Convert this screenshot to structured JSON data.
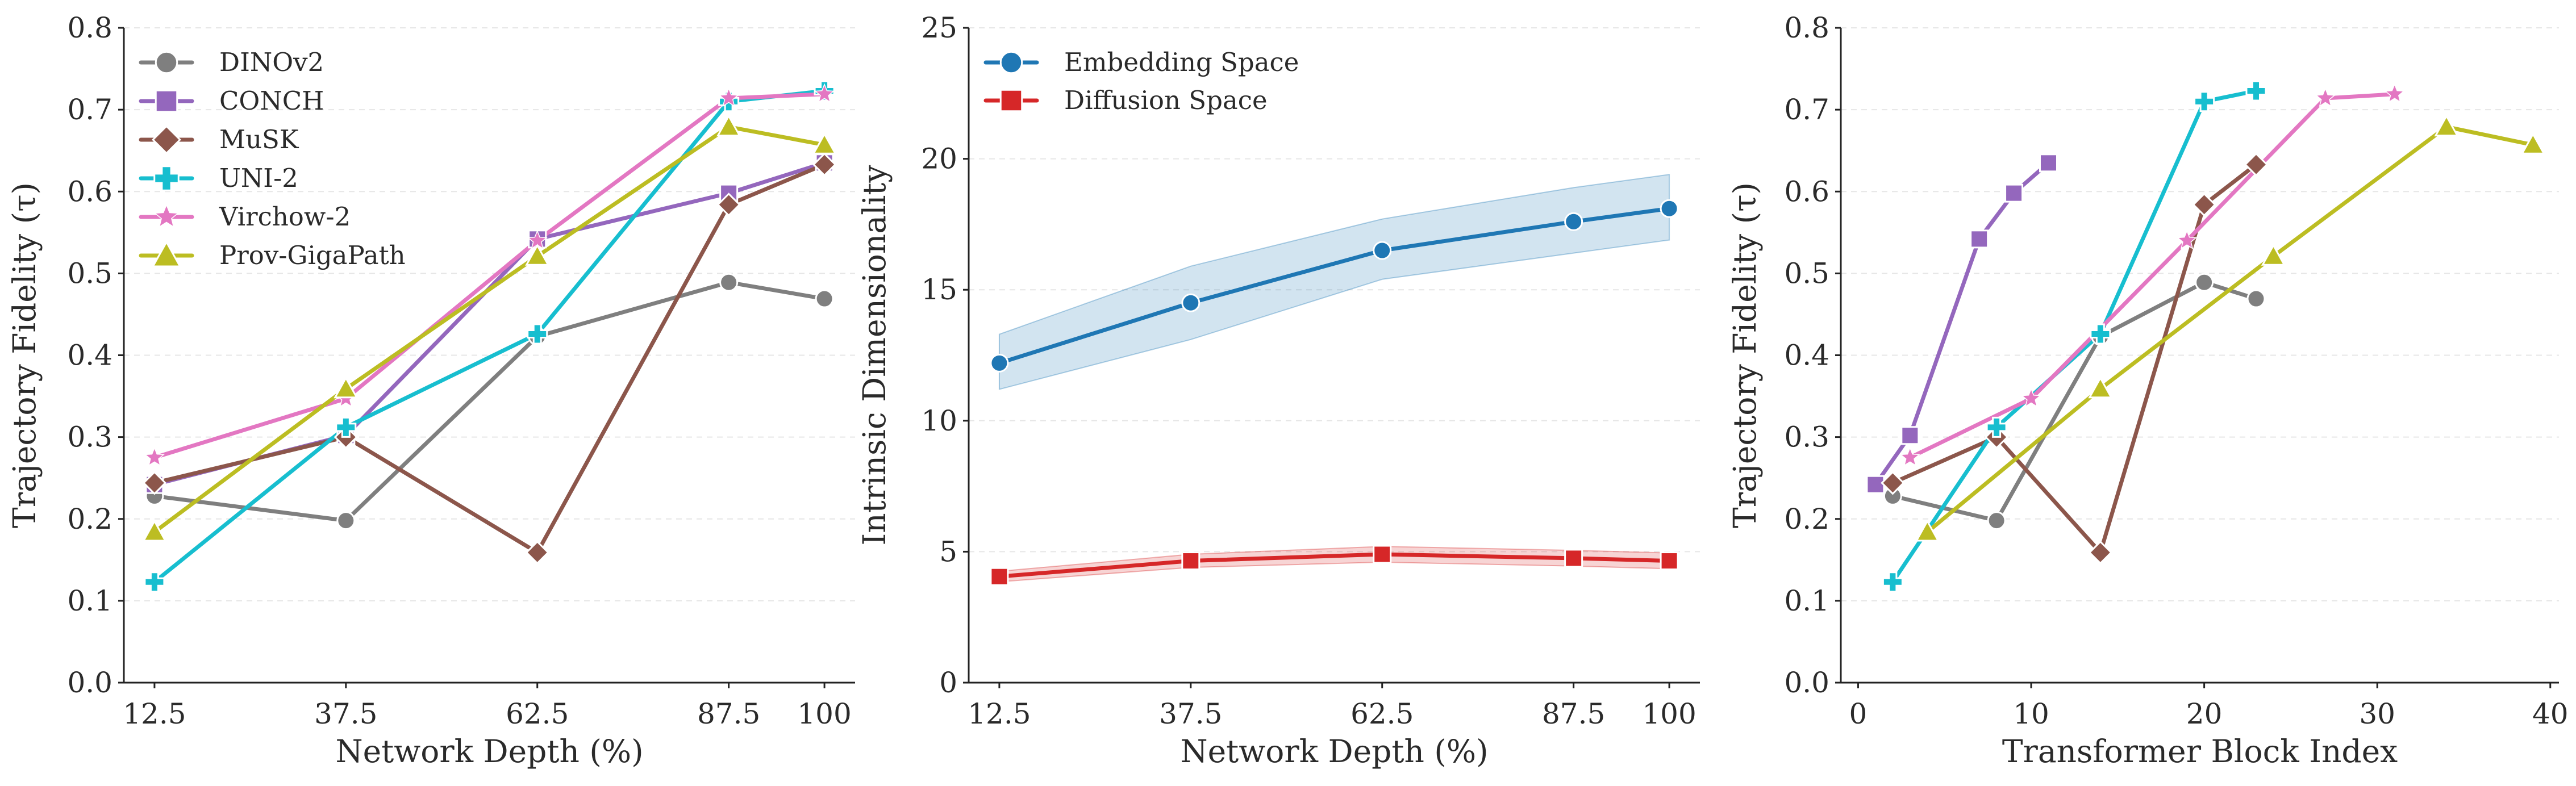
{
  "chart_data": [
    {
      "type": "line",
      "xlabel": "Network Depth (%)",
      "ylabel": "Trajectory Fidelity (τ)",
      "xlim": [
        8.5,
        104
      ],
      "ylim": [
        0,
        0.8
      ],
      "xticks": [
        12.5,
        37.5,
        62.5,
        87.5,
        100
      ],
      "xtick_labels": [
        "12.5",
        "37.5",
        "62.5",
        "87.5",
        "100"
      ],
      "yticks": [
        0,
        0.1,
        0.2,
        0.3,
        0.4,
        0.5,
        0.6,
        0.7,
        0.8
      ],
      "ytick_labels": [
        "0.0",
        "0.1",
        "0.2",
        "0.3",
        "0.4",
        "0.5",
        "0.6",
        "0.7",
        "0.8"
      ],
      "legend_position": "top-left",
      "grid": "horizontal dashed",
      "series": [
        {
          "name": "DINOv2",
          "color": "#7f7f7f",
          "marker": "circle",
          "x": [
            12.5,
            37.5,
            62.5,
            87.5,
            100
          ],
          "values": [
            0.228,
            0.198,
            0.423,
            0.489,
            0.469
          ]
        },
        {
          "name": "CONCH",
          "color": "#9467bd",
          "marker": "square",
          "x": [
            12.5,
            37.5,
            62.5,
            87.5,
            100
          ],
          "values": [
            0.242,
            0.302,
            0.542,
            0.598,
            0.635
          ]
        },
        {
          "name": "MuSK",
          "color": "#8c564b",
          "marker": "diamond",
          "x": [
            12.5,
            37.5,
            62.5,
            87.5,
            100
          ],
          "values": [
            0.244,
            0.3,
            0.159,
            0.584,
            0.633
          ]
        },
        {
          "name": "UNI-2",
          "color": "#17becf",
          "marker": "plus",
          "x": [
            12.5,
            37.5,
            62.5,
            87.5,
            100
          ],
          "values": [
            0.123,
            0.312,
            0.426,
            0.71,
            0.723
          ]
        },
        {
          "name": "Virchow-2",
          "color": "#e377c2",
          "marker": "star",
          "x": [
            12.5,
            37.5,
            62.5,
            87.5,
            100
          ],
          "values": [
            0.275,
            0.347,
            0.54,
            0.714,
            0.719
          ]
        },
        {
          "name": "Prov-GigaPath",
          "color": "#bcbd22",
          "marker": "triangle",
          "x": [
            12.5,
            37.5,
            62.5,
            87.5,
            100
          ],
          "values": [
            0.184,
            0.359,
            0.521,
            0.679,
            0.657
          ]
        }
      ]
    },
    {
      "type": "line",
      "xlabel": "Network Depth (%)",
      "ylabel": "Intrinsic Dimensionality",
      "xlim": [
        8.5,
        104
      ],
      "ylim": [
        0,
        25
      ],
      "xticks": [
        12.5,
        37.5,
        62.5,
        87.5,
        100
      ],
      "xtick_labels": [
        "12.5",
        "37.5",
        "62.5",
        "87.5",
        "100"
      ],
      "yticks": [
        0,
        5,
        10,
        15,
        20,
        25
      ],
      "ytick_labels": [
        "0",
        "5",
        "10",
        "15",
        "20",
        "25"
      ],
      "legend_position": "top-left",
      "grid": "horizontal dashed",
      "series": [
        {
          "name": "Embedding Space",
          "color": "#1f77b4",
          "marker": "circle",
          "x": [
            12.5,
            37.5,
            62.5,
            87.5,
            100
          ],
          "values": [
            12.2,
            14.5,
            16.5,
            17.6,
            18.1
          ],
          "band_low": [
            11.2,
            13.1,
            15.4,
            16.4,
            16.9
          ],
          "band_high": [
            13.3,
            15.9,
            17.7,
            18.9,
            19.4
          ]
        },
        {
          "name": "Diffusion Space",
          "color": "#d62728",
          "marker": "square",
          "x": [
            12.5,
            37.5,
            62.5,
            87.5,
            100
          ],
          "values": [
            4.05,
            4.65,
            4.9,
            4.75,
            4.65
          ],
          "band_low": [
            3.85,
            4.4,
            4.6,
            4.45,
            4.35
          ],
          "band_high": [
            4.25,
            4.9,
            5.2,
            5.05,
            4.95
          ]
        }
      ]
    },
    {
      "type": "line",
      "xlabel": "Transformer Block Index",
      "ylabel": "Trajectory Fidelity (τ)",
      "xlim": [
        -1,
        40.5
      ],
      "ylim": [
        0,
        0.8
      ],
      "xticks": [
        0,
        10,
        20,
        30,
        40
      ],
      "xtick_labels": [
        "0",
        "10",
        "20",
        "30",
        "40"
      ],
      "yticks": [
        0,
        0.1,
        0.2,
        0.3,
        0.4,
        0.5,
        0.6,
        0.7,
        0.8
      ],
      "ytick_labels": [
        "0.0",
        "0.1",
        "0.2",
        "0.3",
        "0.4",
        "0.5",
        "0.6",
        "0.7",
        "0.8"
      ],
      "grid": "horizontal dashed",
      "series": [
        {
          "name": "DINOv2",
          "color": "#7f7f7f",
          "marker": "circle",
          "x": [
            2,
            8,
            14,
            20,
            23
          ],
          "values": [
            0.228,
            0.198,
            0.423,
            0.489,
            0.469
          ]
        },
        {
          "name": "CONCH",
          "color": "#9467bd",
          "marker": "square",
          "x": [
            1,
            3,
            7,
            9,
            11
          ],
          "values": [
            0.242,
            0.302,
            0.542,
            0.598,
            0.635
          ]
        },
        {
          "name": "MuSK",
          "color": "#8c564b",
          "marker": "diamond",
          "x": [
            2,
            8,
            14,
            20,
            23
          ],
          "values": [
            0.244,
            0.3,
            0.159,
            0.584,
            0.633
          ]
        },
        {
          "name": "UNI-2",
          "color": "#17becf",
          "marker": "plus",
          "x": [
            2,
            8,
            14,
            20,
            23
          ],
          "values": [
            0.123,
            0.312,
            0.426,
            0.71,
            0.723
          ]
        },
        {
          "name": "Virchow-2",
          "color": "#e377c2",
          "marker": "star",
          "x": [
            3,
            10,
            19,
            27,
            31
          ],
          "values": [
            0.275,
            0.347,
            0.54,
            0.714,
            0.719
          ]
        },
        {
          "name": "Prov-GigaPath",
          "color": "#bcbd22",
          "marker": "triangle",
          "x": [
            4,
            14,
            24,
            34,
            39
          ],
          "values": [
            0.184,
            0.359,
            0.521,
            0.679,
            0.657
          ]
        }
      ]
    }
  ]
}
